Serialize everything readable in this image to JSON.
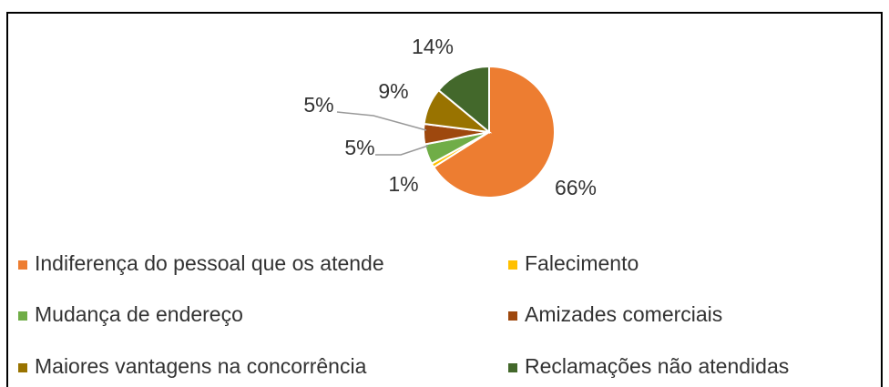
{
  "chart_data": {
    "type": "pie",
    "categories": [
      "Indiferença do pessoal que os atende",
      "Falecimento",
      "Mudança de endereço",
      "Amizades comerciais",
      "Maiores vantagens na concorrência",
      "Reclamações não atendidas"
    ],
    "values": [
      66,
      1,
      5,
      5,
      9,
      14
    ],
    "value_labels": [
      "66%",
      "1%",
      "5%",
      "5%",
      "9%",
      "14%"
    ],
    "colors": [
      "#ed7d31",
      "#ffc000",
      "#70ad47",
      "#9e480e",
      "#997300",
      "#43682b"
    ]
  }
}
